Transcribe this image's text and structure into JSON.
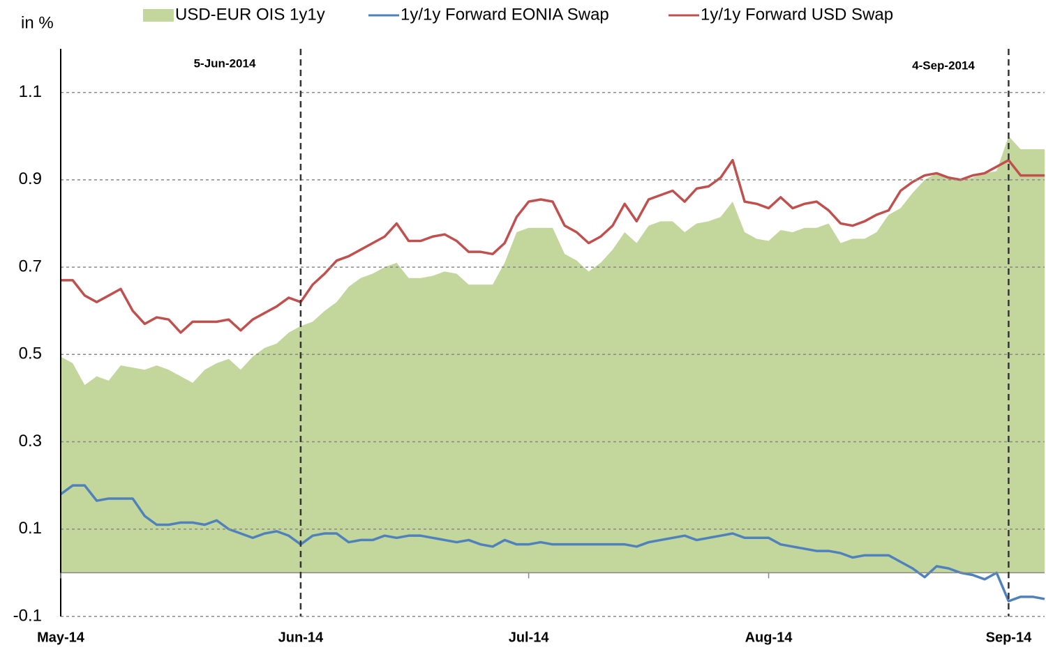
{
  "chart_data": {
    "type": "line",
    "y_axis_label": "in %",
    "legend": "top",
    "grid": true,
    "annotations": [
      "5-Jun-2014",
      "4-Sep-2014"
    ],
    "categories": [
      "May-14",
      null,
      null,
      null,
      null,
      null,
      null,
      null,
      null,
      null,
      null,
      null,
      null,
      null,
      null,
      null,
      null,
      null,
      null,
      null,
      "Jun-14",
      null,
      null,
      null,
      null,
      null,
      null,
      null,
      null,
      null,
      null,
      null,
      null,
      null,
      null,
      null,
      null,
      null,
      null,
      "Jul-14",
      null,
      null,
      null,
      null,
      null,
      null,
      null,
      null,
      null,
      null,
      null,
      null,
      null,
      null,
      null,
      null,
      null,
      null,
      null,
      "Aug-14",
      null,
      null,
      null,
      null,
      null,
      null,
      null,
      null,
      null,
      null,
      null,
      null,
      null,
      null,
      null,
      null,
      null,
      null,
      null,
      "Sep-14",
      null,
      null,
      null
    ],
    "ylim": [
      -0.1,
      1.2
    ],
    "yticks": [
      -0.1,
      0.1,
      0.3,
      0.5,
      0.7,
      0.9,
      1.1
    ],
    "series": [
      {
        "name": "USD-EUR OIS 1y1y",
        "kind": "area",
        "color": "#c3d69b",
        "values": [
          0.495,
          0.48,
          0.43,
          0.45,
          0.44,
          0.475,
          0.47,
          0.465,
          0.475,
          0.465,
          0.45,
          0.435,
          0.465,
          0.48,
          0.49,
          0.465,
          0.495,
          0.515,
          0.525,
          0.55,
          0.565,
          0.575,
          0.6,
          0.62,
          0.655,
          0.675,
          0.685,
          0.7,
          0.71,
          0.675,
          0.675,
          0.68,
          0.69,
          0.685,
          0.66,
          0.66,
          0.66,
          0.71,
          0.78,
          0.79,
          0.79,
          0.79,
          0.73,
          0.715,
          0.69,
          0.71,
          0.74,
          0.78,
          0.755,
          0.795,
          0.805,
          0.805,
          0.78,
          0.8,
          0.805,
          0.815,
          0.85,
          0.78,
          0.765,
          0.76,
          0.785,
          0.78,
          0.79,
          0.79,
          0.8,
          0.755,
          0.765,
          0.765,
          0.78,
          0.82,
          0.835,
          0.87,
          0.9,
          0.915,
          0.905,
          0.9,
          0.905,
          0.915,
          0.92,
          1.0,
          0.97,
          0.97,
          0.97
        ]
      },
      {
        "name": "1y/1y Forward EONIA Swap",
        "kind": "line",
        "color": "#4f81bd",
        "values": [
          0.18,
          0.2,
          0.2,
          0.165,
          0.17,
          0.17,
          0.17,
          0.13,
          0.11,
          0.11,
          0.115,
          0.115,
          0.11,
          0.12,
          0.1,
          0.09,
          0.08,
          0.09,
          0.095,
          0.085,
          0.065,
          0.085,
          0.09,
          0.09,
          0.07,
          0.075,
          0.075,
          0.085,
          0.08,
          0.085,
          0.085,
          0.08,
          0.075,
          0.07,
          0.075,
          0.065,
          0.06,
          0.075,
          0.065,
          0.065,
          0.07,
          0.065,
          0.065,
          0.065,
          0.065,
          0.065,
          0.065,
          0.065,
          0.06,
          0.07,
          0.075,
          0.08,
          0.085,
          0.075,
          0.08,
          0.085,
          0.09,
          0.08,
          0.08,
          0.08,
          0.065,
          0.06,
          0.055,
          0.05,
          0.05,
          0.045,
          0.035,
          0.04,
          0.04,
          0.04,
          0.025,
          0.01,
          -0.01,
          0.015,
          0.01,
          0,
          -0.005,
          -0.015,
          0,
          -0.065,
          -0.055,
          -0.055,
          -0.06
        ]
      },
      {
        "name": "1y/1y Forward USD Swap",
        "kind": "line",
        "color": "#c0504d",
        "values": [
          0.67,
          0.67,
          0.635,
          0.62,
          0.635,
          0.65,
          0.6,
          0.57,
          0.585,
          0.58,
          0.55,
          0.575,
          0.575,
          0.575,
          0.58,
          0.555,
          0.58,
          0.595,
          0.61,
          0.63,
          0.62,
          0.66,
          0.685,
          0.715,
          0.725,
          0.74,
          0.755,
          0.77,
          0.8,
          0.76,
          0.76,
          0.77,
          0.775,
          0.76,
          0.735,
          0.735,
          0.73,
          0.755,
          0.815,
          0.85,
          0.855,
          0.85,
          0.795,
          0.78,
          0.755,
          0.77,
          0.795,
          0.845,
          0.805,
          0.855,
          0.865,
          0.875,
          0.85,
          0.88,
          0.885,
          0.905,
          0.945,
          0.85,
          0.845,
          0.835,
          0.86,
          0.835,
          0.845,
          0.85,
          0.83,
          0.8,
          0.795,
          0.805,
          0.82,
          0.83,
          0.875,
          0.895,
          0.91,
          0.915,
          0.905,
          0.9,
          0.91,
          0.915,
          0.93,
          0.945,
          0.91,
          0.91,
          0.91
        ]
      }
    ]
  }
}
